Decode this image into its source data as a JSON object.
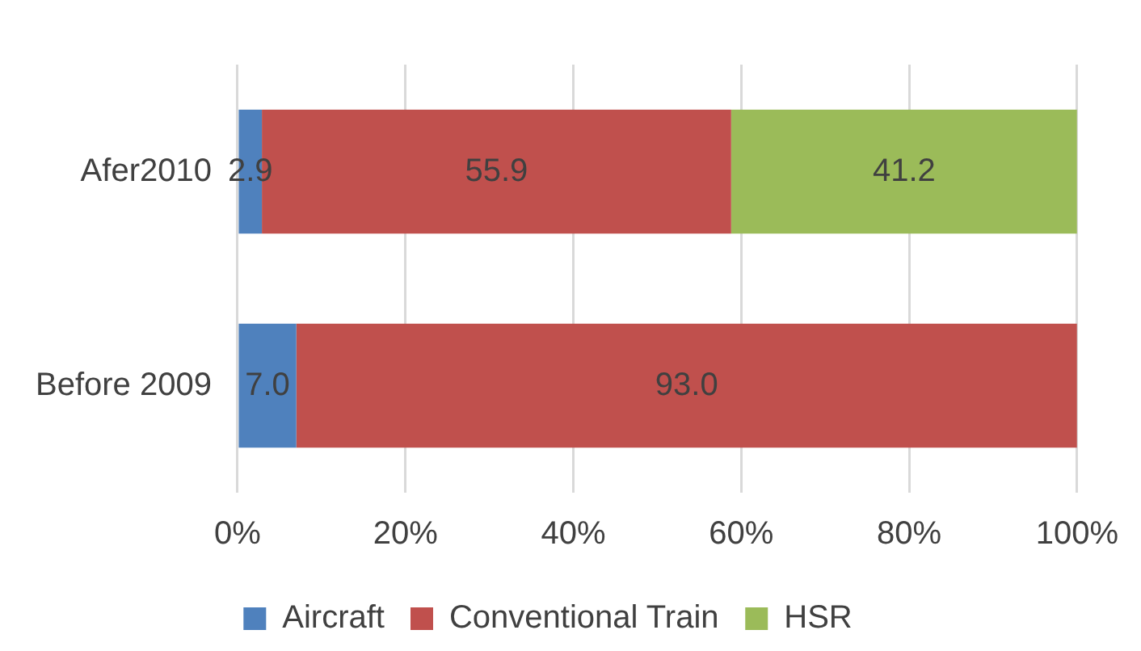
{
  "chart_data": {
    "type": "bar",
    "orientation": "horizontal",
    "stacked": true,
    "categories": [
      "Afer2010",
      "Before 2009"
    ],
    "series": [
      {
        "name": "Aircraft",
        "color": "#4f81bd",
        "values": [
          2.9,
          7.0
        ],
        "value_labels": [
          "2.9",
          "7.0"
        ]
      },
      {
        "name": "Conventional Train",
        "color": "#c0504d",
        "values": [
          55.9,
          93.0
        ],
        "value_labels": [
          "55.9",
          "93.0"
        ]
      },
      {
        "name": "HSR",
        "color": "#9bbb59",
        "values": [
          41.2,
          null
        ],
        "value_labels": [
          "41.2",
          null
        ]
      }
    ],
    "xlim": [
      0,
      100
    ],
    "xticks": [
      {
        "value": 0,
        "label": "0%"
      },
      {
        "value": 20,
        "label": "20%"
      },
      {
        "value": 40,
        "label": "40%"
      },
      {
        "value": 60,
        "label": "60%"
      },
      {
        "value": 80,
        "label": "80%"
      },
      {
        "value": 100,
        "label": "100%"
      }
    ],
    "grid": "x",
    "legend": "bottom"
  }
}
